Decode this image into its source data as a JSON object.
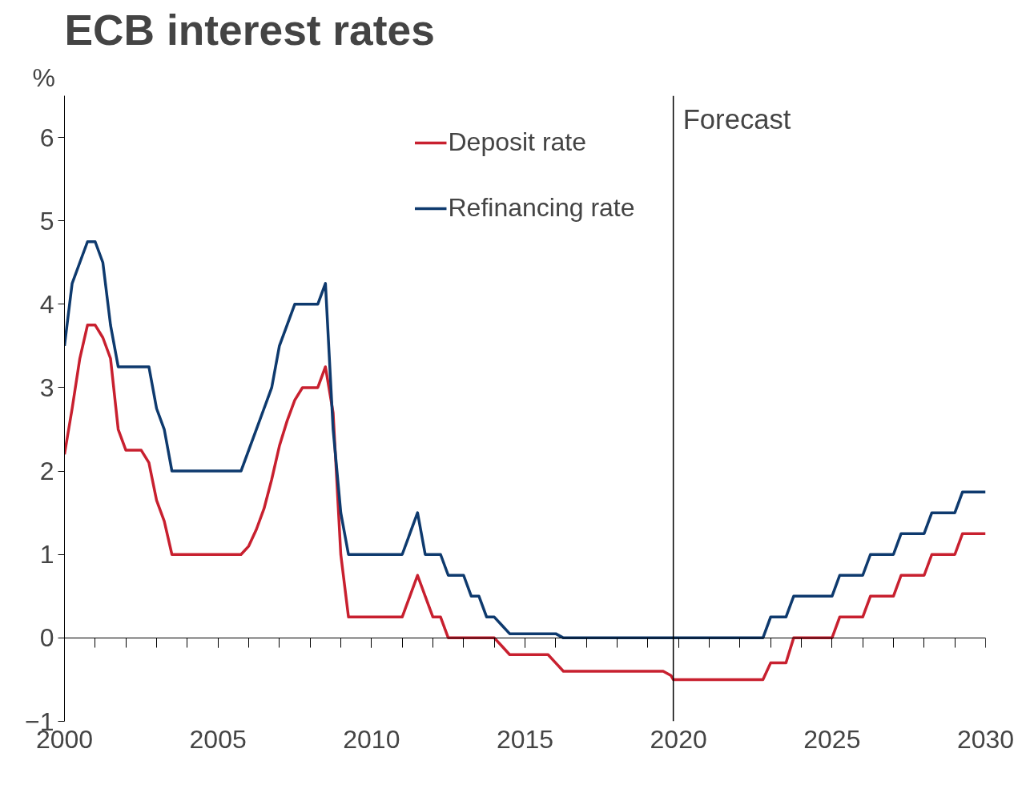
{
  "chart_data": {
    "type": "line",
    "title": "ECB interest rates",
    "ylabel": "%",
    "xlim": [
      2000,
      2030
    ],
    "ylim": [
      -1,
      6.5
    ],
    "xticks": [
      2000,
      2005,
      2010,
      2015,
      2020,
      2025,
      2030
    ],
    "yticks": [
      -1,
      0,
      1,
      2,
      3,
      4,
      5,
      6
    ],
    "legend": "top",
    "line_style": "solid",
    "marker": "none",
    "ref_lines": [
      {
        "axis": "x",
        "value": 2019.83,
        "label": "Forecast",
        "color": "#000000"
      }
    ],
    "series": [
      {
        "name": "Deposit rate",
        "color": "#c8202f",
        "x": [
          2000,
          2000.25,
          2000.5,
          2000.75,
          2001,
          2001.25,
          2001.5,
          2001.75,
          2002,
          2002.5,
          2002.75,
          2003,
          2003.25,
          2003.5,
          2005.75,
          2006,
          2006.25,
          2006.5,
          2006.75,
          2007,
          2007.25,
          2007.5,
          2007.75,
          2008.25,
          2008.5,
          2008.75,
          2009,
          2009.25,
          2011,
          2011.25,
          2011.5,
          2011.75,
          2012,
          2012.25,
          2012.5,
          2014,
          2014.25,
          2014.5,
          2014.75,
          2015.75,
          2016,
          2016.25,
          2019.5,
          2019.75,
          2019.83,
          2022.75,
          2023,
          2023.5,
          2023.75,
          2025,
          2025.25,
          2026,
          2026.25,
          2027,
          2027.25,
          2028,
          2028.25,
          2029,
          2029.25,
          2030
        ],
        "values": [
          2.2,
          2.75,
          3.35,
          3.75,
          3.75,
          3.6,
          3.35,
          2.5,
          2.25,
          2.25,
          2.1,
          1.65,
          1.4,
          1.0,
          1.0,
          1.1,
          1.3,
          1.55,
          1.9,
          2.3,
          2.6,
          2.85,
          3.0,
          3.0,
          3.25,
          2.7,
          1.0,
          0.25,
          0.25,
          0.5,
          0.75,
          0.5,
          0.25,
          0.25,
          0.0,
          0.0,
          -0.1,
          -0.2,
          -0.2,
          -0.2,
          -0.3,
          -0.4,
          -0.4,
          -0.45,
          -0.5,
          -0.5,
          -0.3,
          -0.3,
          0.0,
          0.0,
          0.25,
          0.25,
          0.5,
          0.5,
          0.75,
          0.75,
          1.0,
          1.0,
          1.25,
          1.25
        ]
      },
      {
        "name": "Refinancing rate",
        "color": "#0e3a6e",
        "x": [
          2000,
          2000.25,
          2000.5,
          2000.75,
          2001,
          2001.25,
          2001.5,
          2001.75,
          2002.75,
          2003,
          2003.25,
          2003.5,
          2005.75,
          2006,
          2006.25,
          2006.5,
          2006.75,
          2007,
          2007.25,
          2007.5,
          2008.25,
          2008.5,
          2008.75,
          2009,
          2009.25,
          2011,
          2011.25,
          2011.5,
          2011.75,
          2012.25,
          2012.5,
          2013,
          2013.25,
          2013.5,
          2013.75,
          2014,
          2014.25,
          2014.5,
          2016,
          2016.25,
          2022.75,
          2023,
          2023.5,
          2023.75,
          2025,
          2025.25,
          2026,
          2026.25,
          2027,
          2027.25,
          2028,
          2028.25,
          2029,
          2029.25,
          2030
        ],
        "values": [
          3.5,
          4.25,
          4.5,
          4.75,
          4.75,
          4.5,
          3.75,
          3.25,
          3.25,
          2.75,
          2.5,
          2.0,
          2.0,
          2.25,
          2.5,
          2.75,
          3.0,
          3.5,
          3.75,
          4.0,
          4.0,
          4.25,
          2.5,
          1.5,
          1.0,
          1.0,
          1.25,
          1.5,
          1.0,
          1.0,
          0.75,
          0.75,
          0.5,
          0.5,
          0.25,
          0.25,
          0.15,
          0.05,
          0.05,
          0.0,
          0.0,
          0.25,
          0.25,
          0.5,
          0.5,
          0.75,
          0.75,
          1.0,
          1.0,
          1.25,
          1.25,
          1.5,
          1.5,
          1.75,
          1.75
        ]
      }
    ]
  }
}
